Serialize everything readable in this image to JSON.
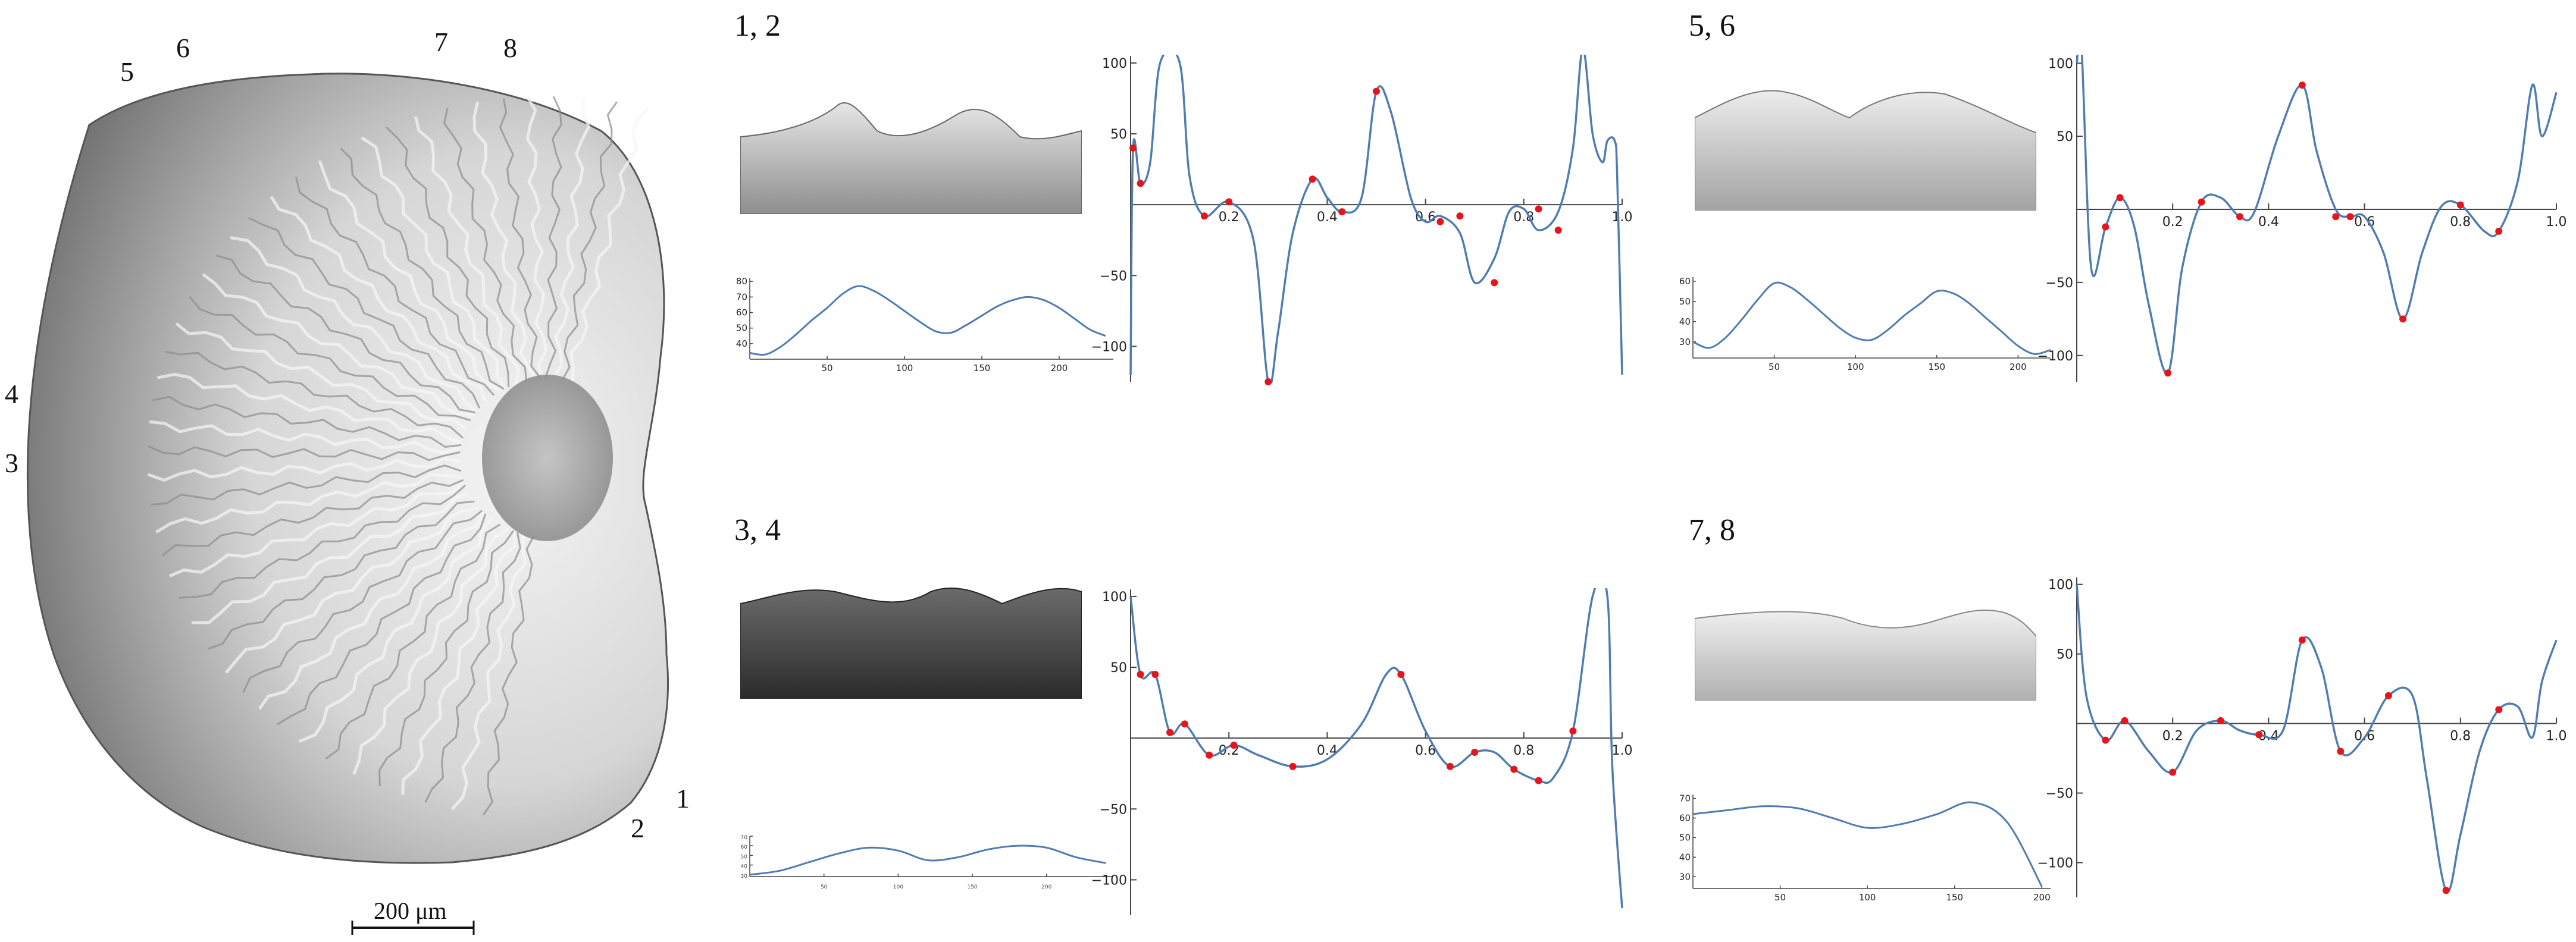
{
  "specimen": {
    "point_labels": [
      "1",
      "2",
      "3",
      "4",
      "5",
      "6",
      "7",
      "8"
    ],
    "scale_bar_label": "200 μm"
  },
  "panels": [
    {
      "label": "1, 2",
      "profile_xticks": [
        "50",
        "100",
        "150",
        "200"
      ],
      "profile_yticks": [
        "80",
        "70",
        "60",
        "50",
        "40"
      ]
    },
    {
      "label": "5, 6",
      "profile_xticks": [
        "50",
        "100",
        "150",
        "200"
      ],
      "profile_yticks": [
        "60",
        "50",
        "40",
        "30"
      ]
    },
    {
      "label": "3, 4",
      "profile_xticks": [
        "50",
        "100",
        "150",
        "200"
      ],
      "profile_yticks": [
        "70",
        "60",
        "50",
        "40",
        "30"
      ]
    },
    {
      "label": "7, 8",
      "profile_xticks": [
        "50",
        "100",
        "150",
        "200"
      ],
      "profile_yticks": [
        "70",
        "60",
        "50",
        "40",
        "30"
      ]
    }
  ],
  "chart_data": [
    {
      "type": "line",
      "panel": "1, 2",
      "kind": "profile",
      "x": [
        0,
        10,
        20,
        30,
        40,
        50,
        60,
        70,
        80,
        90,
        100,
        110,
        120,
        130,
        140,
        150,
        160,
        170,
        180,
        190,
        200,
        210,
        220,
        230
      ],
      "y": [
        34,
        33,
        38,
        46,
        55,
        63,
        72,
        77,
        74,
        68,
        61,
        54,
        48,
        47,
        52,
        58,
        64,
        68,
        70,
        68,
        63,
        56,
        49,
        45
      ],
      "xlim": [
        0,
        235
      ],
      "ylim": [
        30,
        82
      ],
      "xticks": [
        50,
        100,
        150,
        200
      ],
      "yticks": [
        80,
        70,
        60,
        50,
        40
      ],
      "color": "#4f7cb1"
    },
    {
      "type": "line",
      "panel": "1, 2",
      "kind": "curvature",
      "x": [
        0,
        0.005,
        0.02,
        0.04,
        0.06,
        0.1,
        0.12,
        0.15,
        0.2,
        0.25,
        0.28,
        0.3,
        0.33,
        0.37,
        0.4,
        0.43,
        0.47,
        0.5,
        0.53,
        0.57,
        0.6,
        0.63,
        0.67,
        0.7,
        0.74,
        0.77,
        0.8,
        0.83,
        0.87,
        0.9,
        0.92,
        0.94,
        0.96,
        0.97,
        0.985,
        0.99,
        1.0
      ],
      "y": [
        -120,
        40,
        15,
        30,
        100,
        100,
        20,
        -8,
        2,
        -25,
        -125,
        -90,
        -20,
        18,
        5,
        -5,
        5,
        80,
        65,
        5,
        -12,
        -8,
        -20,
        -55,
        -38,
        -5,
        -3,
        -18,
        -5,
        40,
        110,
        50,
        30,
        45,
        45,
        20,
        -120
      ],
      "xlim": [
        0,
        1.0
      ],
      "ylim": [
        -125,
        105
      ],
      "xticks": [
        0.2,
        0.4,
        0.6,
        0.8,
        1.0
      ],
      "yticks": [
        100,
        50,
        -50,
        -100
      ],
      "marked_points": [
        [
          0.005,
          40
        ],
        [
          0.02,
          15
        ],
        [
          0.15,
          -8
        ],
        [
          0.2,
          2
        ],
        [
          0.28,
          -125
        ],
        [
          0.37,
          18
        ],
        [
          0.43,
          -5
        ],
        [
          0.5,
          80
        ],
        [
          0.63,
          -12
        ],
        [
          0.67,
          -8
        ],
        [
          0.74,
          -55
        ],
        [
          0.83,
          -3
        ],
        [
          0.87,
          -18
        ]
      ],
      "color": "#4f7cb1",
      "marker_color": "#e8141c"
    },
    {
      "type": "line",
      "panel": "5, 6",
      "kind": "profile",
      "x": [
        0,
        10,
        20,
        30,
        40,
        50,
        60,
        70,
        80,
        90,
        100,
        110,
        120,
        130,
        140,
        150,
        160,
        170,
        180,
        190,
        200,
        210,
        220
      ],
      "y": [
        30,
        27,
        32,
        41,
        51,
        59,
        57,
        51,
        44,
        37,
        32,
        31,
        36,
        43,
        49,
        55,
        54,
        49,
        42,
        35,
        28,
        24,
        26
      ],
      "xlim": [
        0,
        220
      ],
      "ylim": [
        22,
        62
      ],
      "xticks": [
        50,
        100,
        150,
        200
      ],
      "yticks": [
        60,
        50,
        40,
        30
      ],
      "color": "#4f7cb1"
    },
    {
      "type": "line",
      "panel": "5, 6",
      "kind": "curvature",
      "x": [
        0,
        0.01,
        0.03,
        0.06,
        0.09,
        0.12,
        0.15,
        0.19,
        0.22,
        0.26,
        0.3,
        0.34,
        0.37,
        0.42,
        0.47,
        0.5,
        0.54,
        0.57,
        0.6,
        0.64,
        0.68,
        0.72,
        0.76,
        0.8,
        0.85,
        0.88,
        0.92,
        0.95,
        0.97,
        1.0
      ],
      "y": [
        100,
        110,
        -40,
        -12,
        8,
        -12,
        -65,
        -112,
        -40,
        5,
        8,
        -5,
        -2,
        50,
        85,
        40,
        0,
        -5,
        -5,
        -30,
        -75,
        -30,
        2,
        3,
        -15,
        -15,
        20,
        85,
        50,
        80
      ],
      "xlim": [
        0,
        1.0
      ],
      "ylim": [
        -118,
        105
      ],
      "xticks": [
        0.2,
        0.4,
        0.6,
        0.8,
        1.0
      ],
      "yticks": [
        100,
        50,
        -50,
        -100
      ],
      "marked_points": [
        [
          0.06,
          -12
        ],
        [
          0.09,
          8
        ],
        [
          0.19,
          -112
        ],
        [
          0.26,
          5
        ],
        [
          0.34,
          -5
        ],
        [
          0.47,
          85
        ],
        [
          0.54,
          -5
        ],
        [
          0.57,
          -5
        ],
        [
          0.68,
          -75
        ],
        [
          0.8,
          3
        ],
        [
          0.88,
          -15
        ]
      ],
      "color": "#4f7cb1",
      "marker_color": "#e8141c"
    },
    {
      "type": "line",
      "panel": "3, 4",
      "kind": "profile",
      "x": [
        0,
        20,
        40,
        60,
        80,
        100,
        120,
        140,
        160,
        180,
        200,
        220,
        240
      ],
      "y": [
        30,
        34,
        43,
        52,
        58,
        55,
        45,
        48,
        56,
        60,
        58,
        48,
        42
      ],
      "xlim": [
        0,
        245
      ],
      "ylim": [
        28,
        70
      ],
      "xticks": [
        50,
        100,
        150,
        200
      ],
      "yticks": [
        70,
        60,
        50,
        40,
        30
      ],
      "color": "#4f7cb1"
    },
    {
      "type": "line",
      "panel": "3, 4",
      "kind": "curvature",
      "x": [
        0,
        0.02,
        0.05,
        0.08,
        0.11,
        0.16,
        0.21,
        0.26,
        0.33,
        0.4,
        0.47,
        0.52,
        0.55,
        0.6,
        0.65,
        0.7,
        0.74,
        0.78,
        0.83,
        0.86,
        0.9,
        0.94,
        0.97,
        0.98,
        1.0
      ],
      "y": [
        100,
        45,
        45,
        4,
        10,
        -12,
        -5,
        -12,
        -20,
        -15,
        10,
        45,
        45,
        5,
        -20,
        -10,
        -10,
        -22,
        -30,
        -28,
        5,
        100,
        100,
        -20,
        -120
      ],
      "xlim": [
        0,
        1.0
      ],
      "ylim": [
        -125,
        105
      ],
      "xticks": [
        0.2,
        0.4,
        0.6,
        0.8,
        1.0
      ],
      "yticks": [
        100,
        50,
        -50,
        -100
      ],
      "marked_points": [
        [
          0.02,
          45
        ],
        [
          0.05,
          45
        ],
        [
          0.08,
          4
        ],
        [
          0.11,
          10
        ],
        [
          0.16,
          -12
        ],
        [
          0.21,
          -5
        ],
        [
          0.33,
          -20
        ],
        [
          0.55,
          45
        ],
        [
          0.65,
          -20
        ],
        [
          0.7,
          -10
        ],
        [
          0.78,
          -22
        ],
        [
          0.83,
          -30
        ],
        [
          0.9,
          5
        ]
      ],
      "color": "#4f7cb1",
      "marker_color": "#e8141c"
    },
    {
      "type": "line",
      "panel": "7, 8",
      "kind": "profile",
      "x": [
        0,
        20,
        40,
        60,
        80,
        100,
        120,
        140,
        160,
        180,
        200
      ],
      "y": [
        62,
        64,
        66,
        65,
        60,
        55,
        57,
        62,
        68,
        58,
        25
      ],
      "xlim": [
        0,
        205
      ],
      "ylim": [
        24,
        72
      ],
      "xticks": [
        50,
        100,
        150,
        200
      ],
      "yticks": [
        70,
        60,
        50,
        40,
        30
      ],
      "color": "#4f7cb1"
    },
    {
      "type": "line",
      "panel": "7, 8",
      "kind": "curvature",
      "x": [
        0,
        0.02,
        0.06,
        0.1,
        0.15,
        0.2,
        0.25,
        0.3,
        0.34,
        0.38,
        0.43,
        0.47,
        0.51,
        0.55,
        0.6,
        0.65,
        0.7,
        0.73,
        0.77,
        0.8,
        0.84,
        0.88,
        0.92,
        0.95,
        0.97,
        1.0
      ],
      "y": [
        100,
        20,
        -12,
        2,
        -20,
        -35,
        -5,
        2,
        -5,
        -8,
        -5,
        60,
        40,
        -20,
        -10,
        20,
        20,
        -40,
        -120,
        -80,
        -20,
        10,
        12,
        -10,
        30,
        60
      ],
      "xlim": [
        0,
        1.0
      ],
      "ylim": [
        -125,
        105
      ],
      "xticks": [
        0.2,
        0.4,
        0.6,
        0.8,
        1.0
      ],
      "yticks": [
        100,
        50,
        -50,
        -100
      ],
      "marked_points": [
        [
          0.06,
          -12
        ],
        [
          0.1,
          2
        ],
        [
          0.2,
          -35
        ],
        [
          0.3,
          2
        ],
        [
          0.38,
          -8
        ],
        [
          0.47,
          60
        ],
        [
          0.55,
          -20
        ],
        [
          0.65,
          20
        ],
        [
          0.77,
          -120
        ],
        [
          0.88,
          10
        ]
      ],
      "color": "#4f7cb1",
      "marker_color": "#e8141c"
    }
  ]
}
